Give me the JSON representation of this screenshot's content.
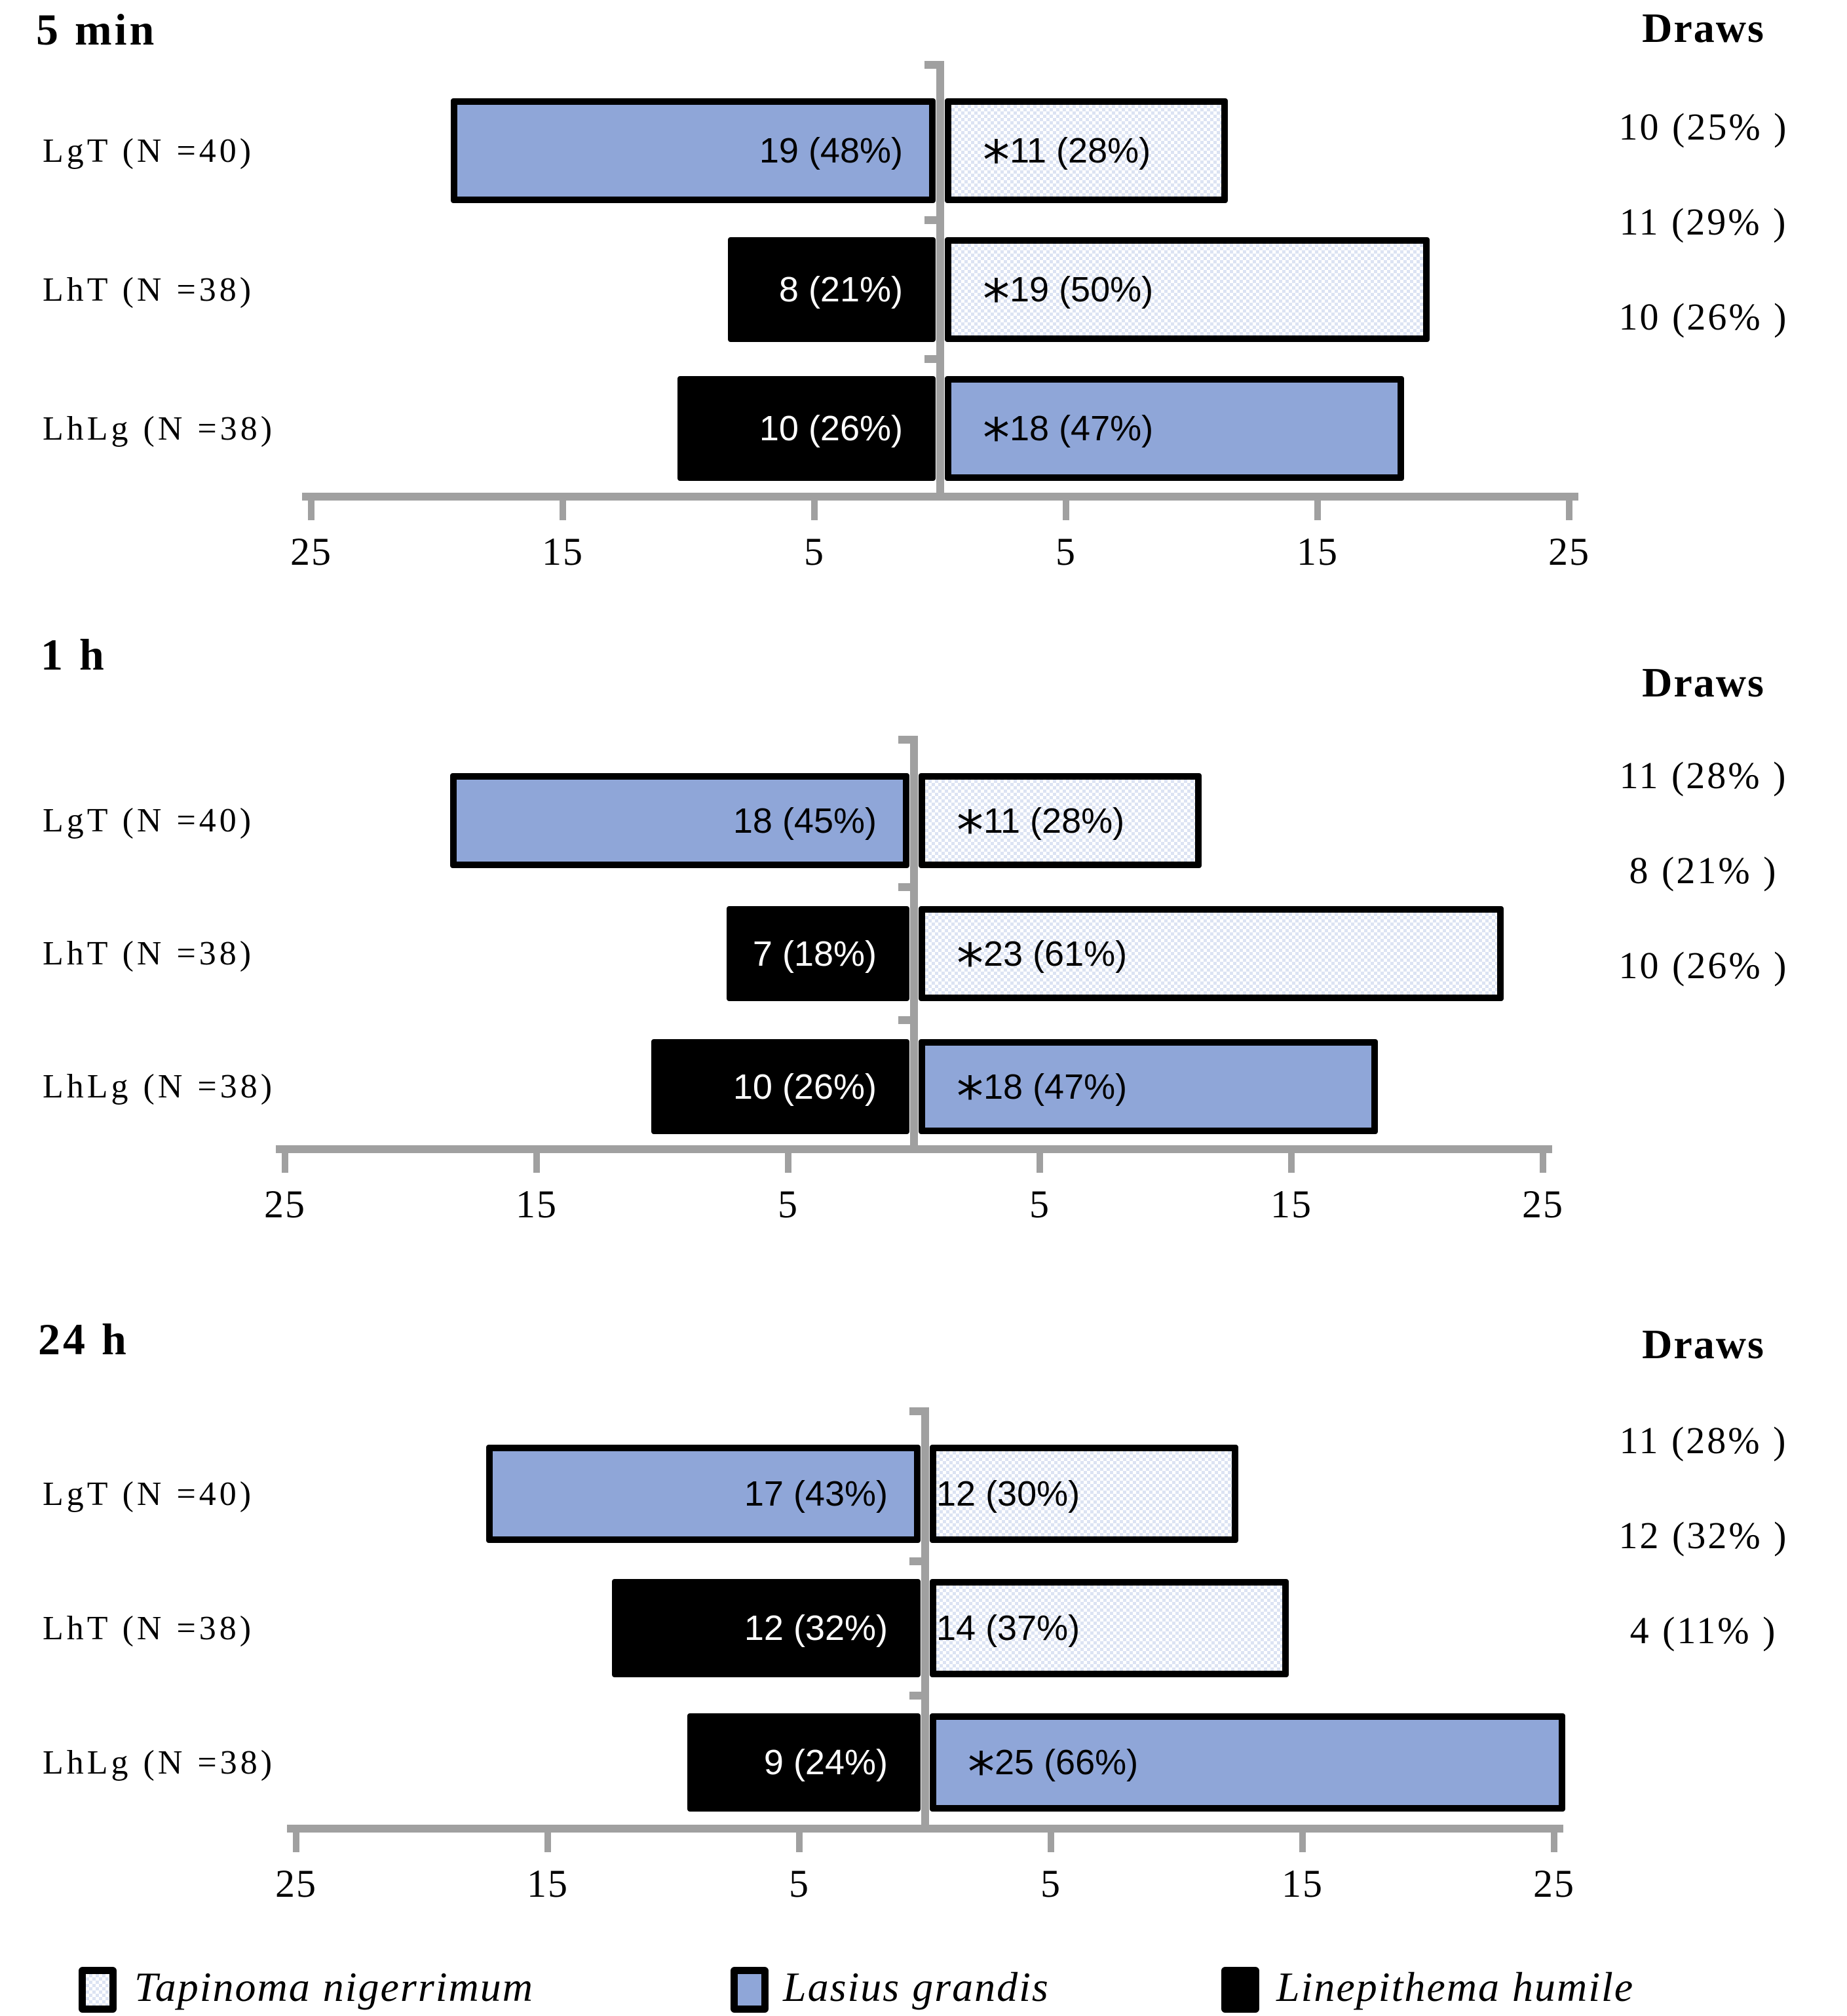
{
  "ui": {
    "asterisk_symbol": "*"
  },
  "colors": {
    "lasius_blue": "#8FA6D8",
    "linepithema_black": "#000000",
    "checker_light_blue": "#DCE3F3",
    "axis_gray": "#A0A0A0"
  },
  "species_fills": {
    "Tapinoma nigerrimum": "checker",
    "Lasius grandis": "blue",
    "Linepithema humile": "black"
  },
  "legend": {
    "items": [
      {
        "label": "Tapinoma nigerrimum",
        "fill": "checker"
      },
      {
        "label": "Lasius grandis",
        "fill": "blue"
      },
      {
        "label": "Linepithema humile",
        "fill": "black"
      }
    ]
  },
  "chart_data": [
    {
      "type": "bar",
      "title": "5 min",
      "draws_header": "Draws",
      "orientation": "horizontal-diverging",
      "axis": {
        "range": [
          -25,
          25
        ],
        "tick_values": [
          -25,
          -15,
          -5,
          5,
          15,
          25
        ],
        "tick_labels": [
          "25",
          "15",
          "5",
          "5",
          "15",
          "25"
        ]
      },
      "rows": [
        {
          "label": "LgT (N =40)",
          "left": {
            "species": "Lasius grandis",
            "value": 19,
            "text": "19 (48%)"
          },
          "right": {
            "species": "Tapinoma nigerrimum",
            "value": 11,
            "text": "11 (28%)",
            "asterisk": true
          },
          "draw": "10 (25% )"
        },
        {
          "label": "LhT (N =38)",
          "left": {
            "species": "Linepithema humile",
            "value": 8,
            "text": "8 (21%)"
          },
          "right": {
            "species": "Tapinoma nigerrimum",
            "value": 19,
            "text": "19 (50%)",
            "asterisk": true
          },
          "draw": "11 (29% )"
        },
        {
          "label": "LhLg (N =38)",
          "left": {
            "species": "Linepithema humile",
            "value": 10,
            "text": "10 (26%)"
          },
          "right": {
            "species": "Lasius grandis",
            "value": 18,
            "text": "18 (47%)",
            "asterisk": true
          },
          "draw": "10 (26% )"
        }
      ]
    },
    {
      "type": "bar",
      "title": "1 h",
      "draws_header": "Draws",
      "orientation": "horizontal-diverging",
      "axis": {
        "range": [
          -25,
          25
        ],
        "tick_values": [
          -25,
          -15,
          -5,
          5,
          15,
          25
        ],
        "tick_labels": [
          "25",
          "15",
          "5",
          "5",
          "15",
          "25"
        ]
      },
      "rows": [
        {
          "label": "LgT (N =40)",
          "left": {
            "species": "Lasius grandis",
            "value": 18,
            "text": "18 (45%)"
          },
          "right": {
            "species": "Tapinoma nigerrimum",
            "value": 11,
            "text": "11 (28%)",
            "asterisk": true
          },
          "draw": "11 (28% )"
        },
        {
          "label": "LhT (N =38)",
          "left": {
            "species": "Linepithema humile",
            "value": 7,
            "text": "7 (18%)"
          },
          "right": {
            "species": "Tapinoma nigerrimum",
            "value": 23,
            "text": "23 (61%)",
            "asterisk": true
          },
          "draw": "8 (21% )"
        },
        {
          "label": "LhLg (N =38)",
          "left": {
            "species": "Linepithema humile",
            "value": 10,
            "text": "10 (26%)"
          },
          "right": {
            "species": "Lasius grandis",
            "value": 18,
            "text": "18 (47%)",
            "asterisk": true
          },
          "draw": "10 (26% )"
        }
      ]
    },
    {
      "type": "bar",
      "title": "24 h",
      "draws_header": "Draws",
      "orientation": "horizontal-diverging",
      "axis": {
        "range": [
          -25,
          25
        ],
        "tick_values": [
          -25,
          -15,
          -5,
          5,
          15,
          25
        ],
        "tick_labels": [
          "25",
          "15",
          "5",
          "5",
          "15",
          "25"
        ]
      },
      "rows": [
        {
          "label": "LgT (N =40)",
          "left": {
            "species": "Lasius grandis",
            "value": 17,
            "text": "17 (43%)"
          },
          "right": {
            "species": "Tapinoma nigerrimum",
            "value": 12,
            "text": "12 (30%)",
            "asterisk": false
          },
          "draw": "11 (28% )"
        },
        {
          "label": "LhT (N =38)",
          "left": {
            "species": "Linepithema humile",
            "value": 12,
            "text": "12 (32%)"
          },
          "right": {
            "species": "Tapinoma nigerrimum",
            "value": 14,
            "text": "14 (37%)",
            "asterisk": false
          },
          "draw": "12 (32% )"
        },
        {
          "label": "LhLg (N =38)",
          "left": {
            "species": "Linepithema humile",
            "value": 9,
            "text": "9 (24%)"
          },
          "right": {
            "species": "Lasius grandis",
            "value": 25,
            "text": "25 (66%)",
            "asterisk": true
          },
          "draw": "4 (11% )"
        }
      ]
    }
  ]
}
